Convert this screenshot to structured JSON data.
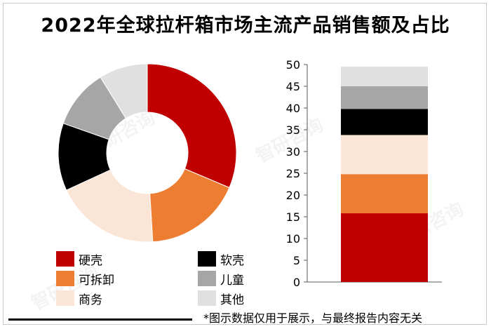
{
  "title": "2022年全球拉杆箱市场主流产品销售额及占比",
  "footnote": "*图示数据仅用于展示，与最终报告内容无关",
  "watermark": "智研咨询",
  "chart_data": [
    {
      "type": "pie",
      "categories": [
        "硬壳",
        "可拆卸",
        "商务",
        "软壳",
        "儿童",
        "其他"
      ],
      "values": [
        32,
        18,
        19.5,
        12.5,
        11,
        9
      ],
      "colors": [
        "#c00000",
        "#ed7d31",
        "#fbe5d6",
        "#000000",
        "#a6a6a6",
        "#e0e0e0"
      ]
    },
    {
      "type": "bar",
      "stacked": true,
      "categories": [
        ""
      ],
      "series": [
        {
          "values": [
            15.8
          ]
        },
        {
          "values": [
            9.0
          ]
        },
        {
          "values": [
            9.0
          ]
        },
        {
          "values": [
            6.0
          ]
        },
        {
          "values": [
            5.2
          ]
        },
        {
          "values": [
            4.5
          ]
        }
      ],
      "colors": [
        "#c00000",
        "#ed7d31",
        "#fbe5d6",
        "#000000",
        "#a6a6a6",
        "#e0e0e0"
      ],
      "ylim": [
        0,
        50
      ],
      "yticks": [
        "0",
        "5",
        "10",
        "15",
        "20",
        "25",
        "30",
        "35",
        "40",
        "45",
        "50"
      ]
    }
  ],
  "legend": [
    {
      "label": "硬壳",
      "color": "#c00000"
    },
    {
      "label": "软壳",
      "color": "#000000"
    },
    {
      "label": "可拆卸",
      "color": "#ed7d31"
    },
    {
      "label": "儿童",
      "color": "#a6a6a6"
    },
    {
      "label": "商务",
      "color": "#fbe5d6"
    },
    {
      "label": "其他",
      "color": "#e0e0e0"
    }
  ]
}
